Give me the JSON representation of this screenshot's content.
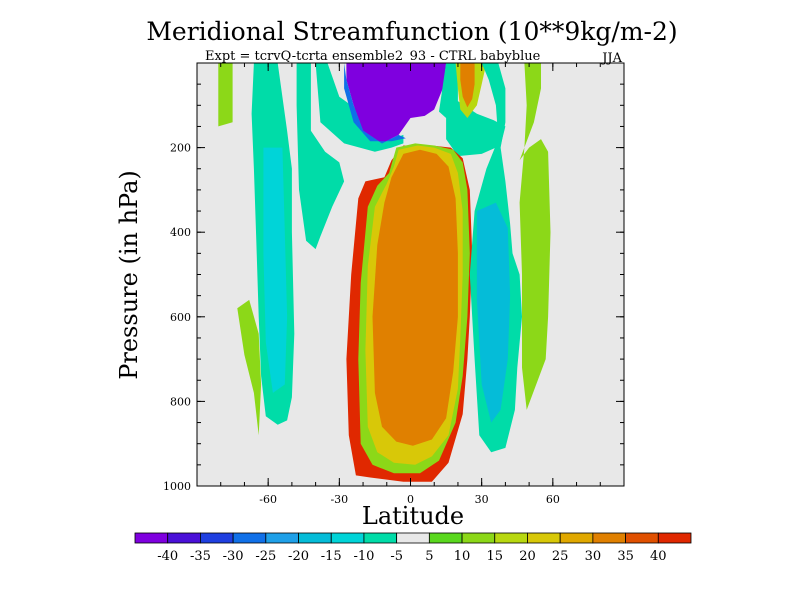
{
  "chart_data": {
    "type": "contour",
    "title": "Meridional Streamfunction (10**9kg/m-2)",
    "subtitle": "Expt = tcrvQ-tcrta ensemble2_93 - CTRL babyblue",
    "season": "JJA",
    "xlabel": "Latitude",
    "ylabel": "Pressure (in hPa)",
    "xlim": [
      -90,
      90
    ],
    "ylim": [
      0,
      1000
    ],
    "y_reversed": true,
    "x_ticks": [
      {
        "value": -60,
        "label": "-60"
      },
      {
        "value": -30,
        "label": "-30"
      },
      {
        "value": 0,
        "label": "0"
      },
      {
        "value": 30,
        "label": "30"
      },
      {
        "value": 60,
        "label": "60"
      }
    ],
    "y_ticks": [
      {
        "value": 200,
        "label": "200"
      },
      {
        "value": 400,
        "label": "400"
      },
      {
        "value": 600,
        "label": "600"
      },
      {
        "value": 800,
        "label": "800"
      },
      {
        "value": 1000,
        "label": "1000"
      }
    ],
    "background_color": "#e8e8e8",
    "colorbar": {
      "colors": [
        "#7f00df",
        "#4a10d8",
        "#1f3fe0",
        "#1070e8",
        "#1fa0e8",
        "#05bcd8",
        "#00d4d8",
        "#00dca8",
        "#e8e8e8",
        "#5ad81e",
        "#8cd818",
        "#b8d810",
        "#d8c808",
        "#e0a800",
        "#e08000",
        "#e05000",
        "#e02800"
      ],
      "labels": [
        "-40",
        "-35",
        "-30",
        "-25",
        "-20",
        "-15",
        "-10",
        "-5",
        "5",
        "10",
        "15",
        "20",
        "25",
        "30",
        "35",
        "40"
      ]
    },
    "regions": [
      {
        "level": 10,
        "description": "positive lobe far south",
        "points": [
          [
            -81,
            0
          ],
          [
            -75,
            0
          ],
          [
            -75,
            140
          ],
          [
            -81,
            150
          ]
        ]
      },
      {
        "level": -5,
        "description": "southern negative column",
        "points": [
          [
            -66,
            0
          ],
          [
            -56,
            0
          ],
          [
            -52,
            160
          ],
          [
            -50,
            250
          ],
          [
            -50,
            400
          ],
          [
            -49,
            640
          ],
          [
            -50,
            790
          ],
          [
            -52,
            845
          ],
          [
            -56,
            855
          ],
          [
            -61,
            835
          ],
          [
            -63,
            740
          ],
          [
            -64,
            600
          ],
          [
            -65,
            420
          ],
          [
            -66,
            250
          ],
          [
            -67,
            120
          ]
        ]
      },
      {
        "level": -10,
        "description": "southern negative core",
        "points": [
          [
            -62,
            200
          ],
          [
            -54,
            200
          ],
          [
            -53,
            400
          ],
          [
            -52,
            600
          ],
          [
            -53,
            760
          ],
          [
            -58,
            780
          ],
          [
            -61,
            660
          ],
          [
            -62,
            450
          ]
        ]
      },
      {
        "level": 10,
        "description": "southern positive column",
        "points": [
          [
            -73,
            580
          ],
          [
            -68,
            560
          ],
          [
            -64,
            640
          ],
          [
            -63,
            760
          ],
          [
            -64,
            880
          ],
          [
            -66,
            780
          ],
          [
            -70,
            690
          ]
        ]
      },
      {
        "level": -5,
        "description": "mid-south negative branch",
        "points": [
          [
            -48,
            0
          ],
          [
            -42,
            0
          ],
          [
            -42,
            160
          ],
          [
            -36,
            210
          ],
          [
            -30,
            235
          ],
          [
            -28,
            280
          ],
          [
            -33,
            340
          ],
          [
            -38,
            410
          ],
          [
            -40,
            440
          ],
          [
            -44,
            420
          ],
          [
            -47,
            300
          ],
          [
            -48,
            100
          ]
        ]
      },
      {
        "level": -5,
        "description": "southern upper branch",
        "points": [
          [
            -40,
            0
          ],
          [
            -35,
            0
          ],
          [
            -30,
            80
          ],
          [
            -20,
            120
          ],
          [
            -12,
            170
          ],
          [
            -8,
            180
          ],
          [
            -3,
            170
          ],
          [
            -3,
            190
          ],
          [
            -8,
            200
          ],
          [
            -15,
            210
          ],
          [
            -28,
            190
          ],
          [
            -38,
            140
          ]
        ]
      },
      {
        "level": -40,
        "description": "upper-tropospheric negative cell",
        "points": [
          [
            -27,
            0
          ],
          [
            15,
            0
          ],
          [
            14,
            55
          ],
          [
            10,
            110
          ],
          [
            6,
            125
          ],
          [
            0,
            130
          ],
          [
            -5,
            170
          ],
          [
            -12,
            190
          ],
          [
            -20,
            160
          ],
          [
            -24,
            100
          ],
          [
            -27,
            40
          ]
        ]
      },
      {
        "level": -25,
        "description": "negative cell edge",
        "points": [
          [
            -28,
            0
          ],
          [
            -27,
            40
          ],
          [
            -24,
            100
          ],
          [
            -20,
            160
          ],
          [
            -12,
            190
          ],
          [
            -5,
            170
          ],
          [
            -2,
            178
          ],
          [
            -8,
            185
          ],
          [
            -17,
            185
          ],
          [
            -24,
            140
          ],
          [
            -28,
            60
          ]
        ]
      },
      {
        "level": -5,
        "description": "northern upper branch",
        "points": [
          [
            15,
            0
          ],
          [
            20,
            0
          ],
          [
            20,
            90
          ],
          [
            28,
            120
          ],
          [
            35,
            135
          ],
          [
            40,
            150
          ],
          [
            38,
            195
          ],
          [
            30,
            215
          ],
          [
            20,
            220
          ],
          [
            15,
            180
          ],
          [
            15,
            130
          ],
          [
            12,
            115
          ]
        ]
      },
      {
        "level": 40,
        "description": "main Hadley cell",
        "points": [
          [
            -3,
            195
          ],
          [
            9,
            195
          ],
          [
            17,
            200
          ],
          [
            22,
            225
          ],
          [
            25,
            300
          ],
          [
            26,
            450
          ],
          [
            25,
            600
          ],
          [
            24,
            700
          ],
          [
            22,
            830
          ],
          [
            16,
            945
          ],
          [
            9,
            990
          ],
          [
            -3,
            990
          ],
          [
            -17,
            980
          ],
          [
            -23,
            975
          ],
          [
            -26,
            880
          ],
          [
            -27,
            700
          ],
          [
            -25,
            500
          ],
          [
            -22,
            320
          ],
          [
            -19,
            280
          ],
          [
            -11,
            270
          ],
          [
            -8,
            230
          ]
        ]
      },
      {
        "level": 10,
        "description": "Hadley cell outer ring",
        "points": [
          [
            -6,
            200
          ],
          [
            2,
            190
          ],
          [
            10,
            195
          ],
          [
            18,
            205
          ],
          [
            22,
            235
          ],
          [
            24,
            300
          ],
          [
            25,
            450
          ],
          [
            24,
            600
          ],
          [
            22,
            740
          ],
          [
            19,
            850
          ],
          [
            12,
            940
          ],
          [
            4,
            970
          ],
          [
            -7,
            970
          ],
          [
            -16,
            950
          ],
          [
            -21,
            900
          ],
          [
            -22,
            700
          ],
          [
            -21,
            520
          ],
          [
            -18,
            340
          ],
          [
            -14,
            290
          ],
          [
            -9,
            260
          ]
        ]
      },
      {
        "level": 20,
        "description": "Hadley cell middle ring",
        "points": [
          [
            -5,
            205
          ],
          [
            3,
            195
          ],
          [
            10,
            200
          ],
          [
            17,
            215
          ],
          [
            20,
            260
          ],
          [
            22,
            350
          ],
          [
            22,
            500
          ],
          [
            21,
            650
          ],
          [
            20,
            770
          ],
          [
            16,
            880
          ],
          [
            9,
            930
          ],
          [
            2,
            950
          ],
          [
            -7,
            945
          ],
          [
            -14,
            920
          ],
          [
            -18,
            860
          ],
          [
            -19,
            680
          ],
          [
            -18,
            480
          ],
          [
            -15,
            340
          ],
          [
            -10,
            285
          ],
          [
            -7,
            245
          ]
        ]
      },
      {
        "level": 30,
        "description": "Hadley cell inner ring",
        "points": [
          [
            -3,
            215
          ],
          [
            4,
            205
          ],
          [
            11,
            215
          ],
          [
            16,
            245
          ],
          [
            19,
            320
          ],
          [
            20,
            450
          ],
          [
            20,
            600
          ],
          [
            18,
            730
          ],
          [
            15,
            840
          ],
          [
            9,
            890
          ],
          [
            1,
            905
          ],
          [
            -6,
            895
          ],
          [
            -12,
            860
          ],
          [
            -15,
            780
          ],
          [
            -16,
            600
          ],
          [
            -14,
            430
          ],
          [
            -11,
            330
          ],
          [
            -8,
            270
          ]
        ]
      },
      {
        "level": 15,
        "description": "northern positive lobe",
        "points": [
          [
            19,
            0
          ],
          [
            32,
            0
          ],
          [
            30,
            50
          ],
          [
            28,
            100
          ],
          [
            24,
            130
          ],
          [
            21,
            110
          ],
          [
            20,
            60
          ]
        ]
      },
      {
        "level": 30,
        "description": "northern positive lobe core",
        "points": [
          [
            21,
            0
          ],
          [
            27,
            0
          ],
          [
            27,
            50
          ],
          [
            26,
            85
          ],
          [
            24,
            105
          ],
          [
            22,
            80
          ],
          [
            21,
            40
          ]
        ]
      },
      {
        "level": -5,
        "description": "northern negative column",
        "points": [
          [
            30,
            0
          ],
          [
            37,
            0
          ],
          [
            40,
            60
          ],
          [
            40,
            140
          ],
          [
            38,
            200
          ],
          [
            40,
            280
          ],
          [
            42,
            380
          ],
          [
            43,
            450
          ],
          [
            46,
            500
          ],
          [
            47,
            600
          ],
          [
            45,
            720
          ],
          [
            44,
            820
          ],
          [
            40,
            910
          ],
          [
            34,
            920
          ],
          [
            29,
            880
          ],
          [
            27,
            700
          ],
          [
            25,
            500
          ],
          [
            27,
            350
          ],
          [
            32,
            250
          ],
          [
            37,
            180
          ],
          [
            36,
            100
          ],
          [
            33,
            40
          ]
        ]
      },
      {
        "level": -15,
        "description": "northern negative core",
        "points": [
          [
            28,
            350
          ],
          [
            36,
            330
          ],
          [
            41,
            390
          ],
          [
            42,
            550
          ],
          [
            41,
            700
          ],
          [
            38,
            820
          ],
          [
            34,
            850
          ],
          [
            30,
            760
          ],
          [
            28,
            560
          ]
        ]
      },
      {
        "level": 10,
        "description": "northern positive column",
        "points": [
          [
            48,
            0
          ],
          [
            55,
            0
          ],
          [
            55,
            60
          ],
          [
            52,
            140
          ],
          [
            46,
            230
          ],
          [
            50,
            200
          ],
          [
            55,
            180
          ],
          [
            58,
            210
          ],
          [
            59,
            400
          ],
          [
            58,
            600
          ],
          [
            57,
            700
          ],
          [
            53,
            760
          ],
          [
            49,
            820
          ],
          [
            47,
            720
          ],
          [
            47,
            500
          ],
          [
            46,
            330
          ],
          [
            48,
            200
          ],
          [
            49,
            100
          ]
        ]
      }
    ]
  }
}
